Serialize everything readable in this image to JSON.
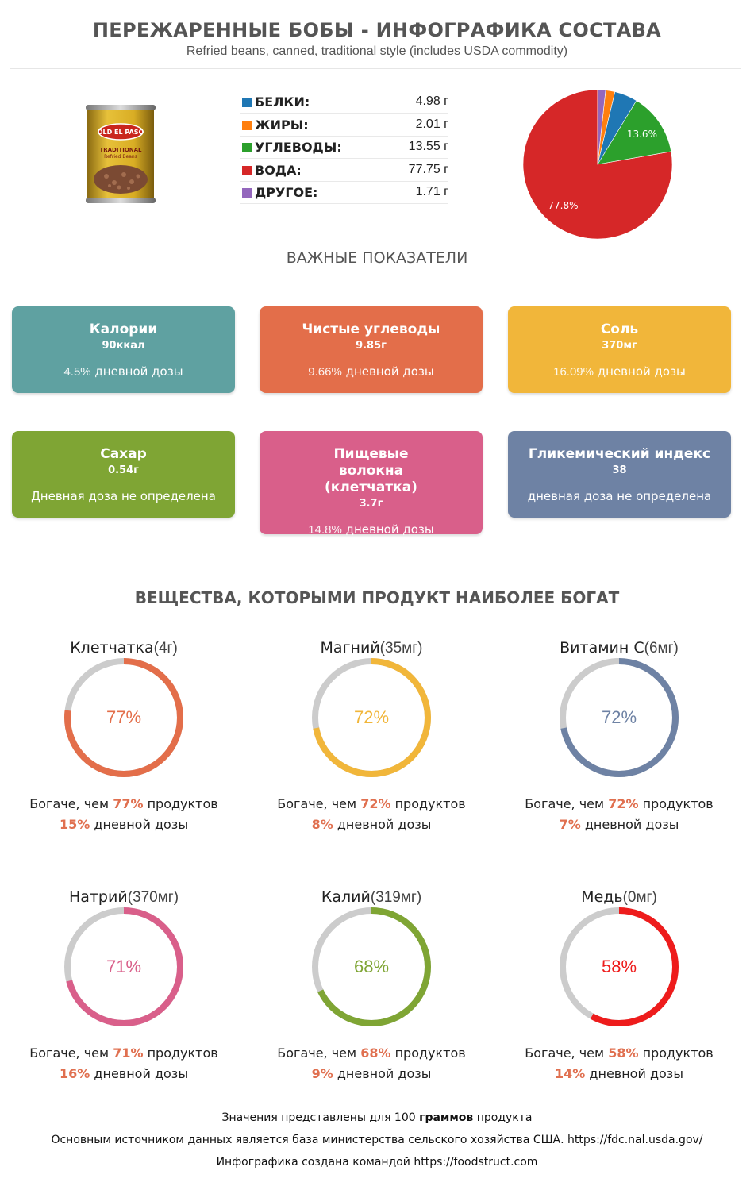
{
  "header": {
    "title": "ПЕРЕЖАРЕННЫЕ БОБЫ - ИНФОГРАФИКА СОСТАВА",
    "subtitle": "Refried beans, canned, traditional style (includes USDA commodity)"
  },
  "product_image": {
    "brand": "OLD EL PASO",
    "label1": "TRADITIONAL",
    "label2": "Refried Beans"
  },
  "chart_data": {
    "type": "pie",
    "categories": [
      "БЕЛКИ:",
      "ЖИРЫ:",
      "УГЛЕВОДЫ:",
      "ВОДА:",
      "ДРУГОЕ:"
    ],
    "values": [
      4.98,
      2.01,
      13.55,
      77.75,
      1.71
    ],
    "value_labels": [
      "4.98 г",
      "2.01 г",
      "13.55 г",
      "77.75 г",
      "1.71 г"
    ],
    "colors": [
      "#1f77b4",
      "#ff7f0e",
      "#2ca02c",
      "#d62728",
      "#9467bd"
    ],
    "slice_labels": {
      "water": "77.8%",
      "carbs": "13.6%"
    },
    "legend_placement": "left"
  },
  "key_section": {
    "title": "ВАЖНЫЕ ПОКАЗАТЕЛИ"
  },
  "cards": [
    {
      "title": "Калории",
      "value": "90ккал",
      "dv_pct": "4.5%",
      "dv_text": "дневной дозы",
      "color": "#5fa1a1"
    },
    {
      "title": "Чистые углеводы",
      "value": "9.85г",
      "dv_pct": "9.66%",
      "dv_text": "дневной дозы",
      "color": "#e36e4a"
    },
    {
      "title": "Соль",
      "value": "370мг",
      "dv_pct": "16.09%",
      "dv_text": "дневной дозы",
      "color": "#f1b63a"
    },
    {
      "title": "Сахар",
      "value": "0.54г",
      "dv_pct": "",
      "dv_text": "Дневная доза не определена",
      "color": "#7fa534"
    },
    {
      "title": "Пищевые волокна (клетчатка)",
      "value": "3.7г",
      "dv_pct": "14.8%",
      "dv_text": "дневной дозы",
      "color": "#d95f8a"
    },
    {
      "title": "Гликемический индекс",
      "value": "38",
      "dv_pct": "",
      "dv_text": "дневная доза не определена",
      "color": "#6e82a4"
    }
  ],
  "rich_section": {
    "title": "ВЕЩЕСТВА, КОТОРЫМИ ПРОДУКТ НАИБОЛЕЕ БОГАТ"
  },
  "nutrients": [
    {
      "name": "Клетчатка",
      "amount": "(4г)",
      "percent": 77,
      "label": "77%",
      "richer_prefix": "Богаче, чем",
      "richer_pct": "77%",
      "richer_suffix": "продуктов",
      "dv_pct": "15%",
      "dv_text": "дневной дозы",
      "color": "#e36e4a"
    },
    {
      "name": "Магний",
      "amount": "(35мг)",
      "percent": 72,
      "label": "72%",
      "richer_prefix": "Богаче, чем",
      "richer_pct": "72%",
      "richer_suffix": "продуктов",
      "dv_pct": "8%",
      "dv_text": "дневной дозы",
      "color": "#f1b63a"
    },
    {
      "name": "Витамин C",
      "amount": "(6мг)",
      "percent": 72,
      "label": "72%",
      "richer_prefix": "Богаче, чем",
      "richer_pct": "72%",
      "richer_suffix": "продуктов",
      "dv_pct": "7%",
      "dv_text": "дневной дозы",
      "color": "#6e82a4"
    },
    {
      "name": "Натрий",
      "amount": "(370мг)",
      "percent": 71,
      "label": "71%",
      "richer_prefix": "Богаче, чем",
      "richer_pct": "71%",
      "richer_suffix": "продуктов",
      "dv_pct": "16%",
      "dv_text": "дневной дозы",
      "color": "#d95f8a"
    },
    {
      "name": "Калий",
      "amount": "(319мг)",
      "percent": 68,
      "label": "68%",
      "richer_prefix": "Богаче, чем",
      "richer_pct": "68%",
      "richer_suffix": "продуктов",
      "dv_pct": "9%",
      "dv_text": "дневной дозы",
      "color": "#7fa534"
    },
    {
      "name": "Медь",
      "amount": "(0мг)",
      "percent": 58,
      "label": "58%",
      "richer_prefix": "Богаче, чем",
      "richer_pct": "58%",
      "richer_suffix": "продуктов",
      "dv_pct": "14%",
      "dv_text": "дневной дозы",
      "color": "#ee1c1c"
    }
  ],
  "footer": {
    "line1_pre": "Значения представлены для 100",
    "line1_bold": "граммов",
    "line1_post": "продукта",
    "line2": "Основным источником данных является база министерства сельского хозяйства США. https://fdc.nal.usda.gov/",
    "line3": "Инфографика создана командой https://foodstruct.com"
  }
}
